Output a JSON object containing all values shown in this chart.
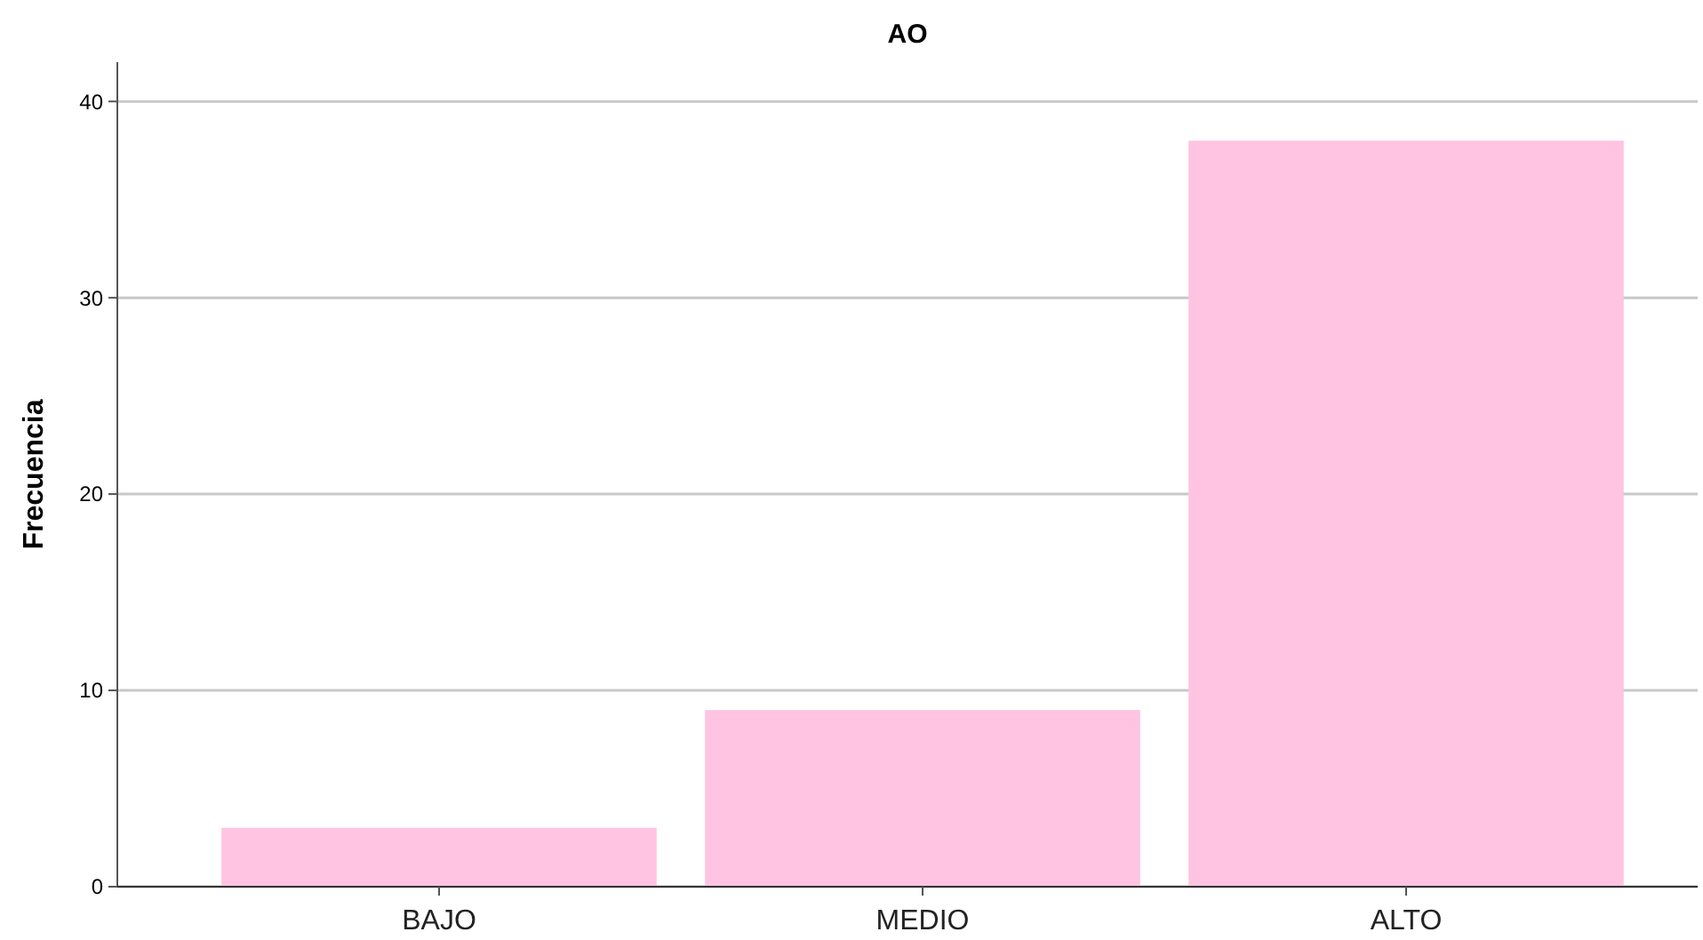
{
  "chart_data": {
    "type": "bar",
    "title": "AO",
    "ylabel": "Frecuencia",
    "categories": [
      "BAJO",
      "MEDIO",
      "ALTO"
    ],
    "values": [
      3,
      9,
      38
    ],
    "color": "#fec4e1",
    "ylim": [
      0,
      42
    ],
    "yticks": [
      0,
      10,
      20,
      30,
      40
    ],
    "grid": "y"
  }
}
